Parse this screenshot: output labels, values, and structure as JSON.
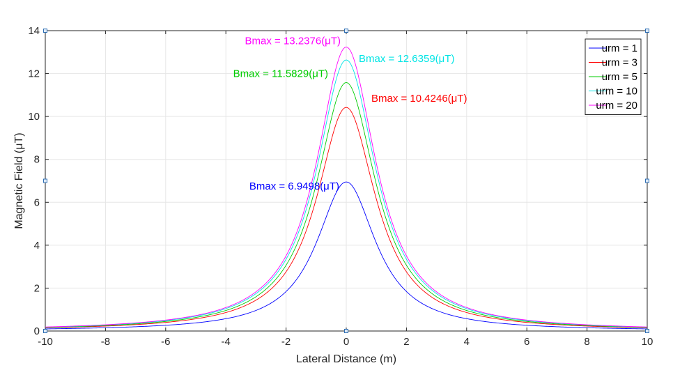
{
  "chart_data": {
    "type": "line",
    "title": "",
    "xlabel": "Lateral Distance (m)",
    "ylabel": "Magnetic Field (μT)",
    "xlim": [
      -10,
      10
    ],
    "ylim": [
      0,
      14
    ],
    "xticks": [
      -10,
      -8,
      -6,
      -4,
      -2,
      0,
      2,
      4,
      6,
      8,
      10
    ],
    "yticks": [
      0,
      2,
      4,
      6,
      8,
      10,
      12,
      14
    ],
    "grid": true,
    "legend_position": "top-right",
    "curve_model": "lorentzian",
    "curve_half_width_m": 1.2,
    "series": [
      {
        "name": "urm = 1",
        "color": "#0000ff",
        "peak": 6.9498,
        "annotation": "Bmax = 6.9498(μT)"
      },
      {
        "name": "urm = 3",
        "color": "#ff0000",
        "peak": 10.4246,
        "annotation": "Bmax = 10.4246(μT)"
      },
      {
        "name": "urm = 5",
        "color": "#00cc00",
        "peak": 11.5829,
        "annotation": "Bmax = 11.5829(μT)"
      },
      {
        "name": "urm = 10",
        "color": "#00e5e5",
        "peak": 12.6359,
        "annotation": "Bmax = 12.6359(μT)"
      },
      {
        "name": "urm = 20",
        "color": "#ff00ff",
        "peak": 13.2376,
        "annotation": "Bmax = 13.2376(μT)"
      }
    ]
  }
}
